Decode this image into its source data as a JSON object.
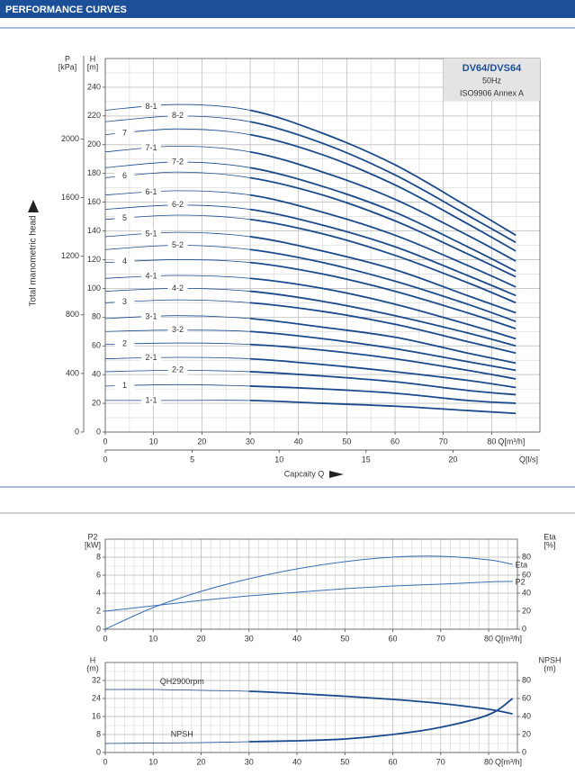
{
  "header": {
    "title": "PERFORMANCE CURVES"
  },
  "chart_data": [
    {
      "type": "line",
      "annotations": [
        "DV64/DVS64",
        "50Hz",
        "ISO9906 Annex A"
      ],
      "ylabel": "Total manometric head",
      "xlabel": "Capcaity Q",
      "yname": "H",
      "yunit": "[m]",
      "y2name": "P",
      "y2unit": "[kPa]",
      "xunit": "Q[m³/h]",
      "x2unit": "Q[l/s]",
      "x": [
        0,
        15,
        30,
        45,
        60,
        75,
        85
      ],
      "xlim": [
        0,
        90
      ],
      "xticks": [
        0,
        10,
        20,
        30,
        40,
        50,
        60,
        70,
        80
      ],
      "x2lim": [
        0,
        25
      ],
      "x2ticks": [
        0,
        5,
        10,
        15,
        20
      ],
      "ylim": [
        0,
        260
      ],
      "yticks": [
        0,
        20,
        40,
        60,
        80,
        100,
        120,
        140,
        160,
        180,
        200,
        220,
        240
      ],
      "y2lim": [
        0,
        2550
      ],
      "y2ticks": [
        0,
        400,
        800,
        1200,
        1600,
        2000
      ],
      "grid": true,
      "bold_from_x": 30,
      "color": "#1a4a8c",
      "series": [
        {
          "name": "8-1",
          "values": [
            224,
            228,
            224,
            208,
            186,
            157,
            137
          ]
        },
        {
          "name": "8-2",
          "values": [
            216,
            220,
            216,
            201,
            179,
            151,
            132
          ]
        },
        {
          "name": "7",
          "values": [
            207,
            211,
            207,
            193,
            172,
            145,
            126
          ]
        },
        {
          "name": "7-1",
          "values": [
            195,
            199,
            195,
            181,
            162,
            137,
            119
          ]
        },
        {
          "name": "7-2",
          "values": [
            184,
            188,
            184,
            171,
            153,
            129,
            112
          ]
        },
        {
          "name": "6",
          "values": [
            177,
            181,
            177,
            165,
            147,
            124,
            108
          ]
        },
        {
          "name": "6-1",
          "values": [
            165,
            168,
            165,
            153,
            137,
            116,
            101
          ]
        },
        {
          "name": "6-2",
          "values": [
            155,
            158,
            155,
            144,
            129,
            109,
            95
          ]
        },
        {
          "name": "5",
          "values": [
            148,
            151,
            148,
            138,
            123,
            104,
            90
          ]
        },
        {
          "name": "5-1",
          "values": [
            136,
            139,
            136,
            126,
            113,
            95,
            83
          ]
        },
        {
          "name": "5-2",
          "values": [
            127,
            130,
            127,
            118,
            105,
            89,
            77
          ]
        },
        {
          "name": "4",
          "values": [
            118,
            120,
            118,
            110,
            98,
            83,
            72
          ]
        },
        {
          "name": "4-1",
          "values": [
            107,
            109,
            107,
            100,
            89,
            75,
            65
          ]
        },
        {
          "name": "4-2",
          "values": [
            98,
            100,
            98,
            91,
            81,
            69,
            60
          ]
        },
        {
          "name": "3",
          "values": [
            90,
            92,
            90,
            84,
            75,
            63,
            55
          ]
        },
        {
          "name": "3-1",
          "values": [
            79,
            81,
            79,
            73,
            66,
            55,
            48
          ]
        },
        {
          "name": "3-2",
          "values": [
            70,
            71,
            70,
            65,
            58,
            49,
            43
          ]
        },
        {
          "name": "2",
          "values": [
            61,
            62,
            61,
            57,
            51,
            43,
            37
          ]
        },
        {
          "name": "2-1",
          "values": [
            51,
            52,
            51,
            47,
            42,
            36,
            31
          ]
        },
        {
          "name": "2-2",
          "values": [
            42,
            43,
            42,
            39,
            35,
            29,
            26
          ]
        },
        {
          "name": "1",
          "values": [
            32,
            33,
            32,
            30,
            27,
            22,
            20
          ]
        },
        {
          "name": "1-1",
          "values": [
            22,
            22,
            22,
            20,
            18,
            15,
            13
          ]
        }
      ]
    },
    {
      "type": "line",
      "yname": "P2",
      "yunit": "[kW]",
      "y2name": "Eta",
      "y2unit": "[%]",
      "xunit": "Q[m³/h]",
      "x": [
        0,
        10,
        20,
        30,
        40,
        50,
        60,
        70,
        80,
        85
      ],
      "xlim": [
        0,
        86
      ],
      "xticks": [
        0,
        10,
        20,
        30,
        40,
        50,
        60,
        70,
        80
      ],
      "ylim": [
        0,
        10
      ],
      "yticks": [
        0,
        2,
        4,
        6,
        8
      ],
      "y2lim": [
        0,
        100
      ],
      "y2ticks": [
        0,
        20,
        40,
        60,
        80
      ],
      "grid": true,
      "color": "#3a6db5",
      "series": [
        {
          "name": "Eta",
          "axis": "y2",
          "values": [
            0,
            24,
            42,
            56,
            67,
            75,
            80,
            81,
            77,
            72
          ]
        },
        {
          "name": "P2",
          "values": [
            2.0,
            2.6,
            3.2,
            3.7,
            4.1,
            4.5,
            4.8,
            5.0,
            5.25,
            5.3
          ]
        }
      ]
    },
    {
      "type": "line",
      "yname": "H",
      "yunit": "(m)",
      "y2name": "NPSH",
      "y2unit": "(m)",
      "xunit": "Q[m³/h]",
      "x": [
        0,
        10,
        20,
        30,
        40,
        50,
        60,
        70,
        80,
        85
      ],
      "xlim": [
        0,
        86
      ],
      "xticks": [
        0,
        10,
        20,
        30,
        40,
        50,
        60,
        70,
        80
      ],
      "ylim": [
        0,
        40
      ],
      "yticks": [
        0,
        8,
        16,
        24,
        32
      ],
      "y2lim": [
        0,
        100
      ],
      "y2ticks": [
        0,
        20,
        40,
        60,
        80
      ],
      "grid": true,
      "bold_from_x": 30,
      "color": "#1a4a8c",
      "series": [
        {
          "name": "QH2900rpm",
          "values": [
            28,
            28,
            27.6,
            27.2,
            26.2,
            25,
            23.6,
            21.8,
            19.2,
            17.2
          ]
        },
        {
          "name": "NPSH",
          "axis": "y2",
          "values": [
            10,
            10.5,
            11,
            12,
            13,
            15,
            20,
            28,
            42,
            60
          ]
        }
      ]
    }
  ]
}
